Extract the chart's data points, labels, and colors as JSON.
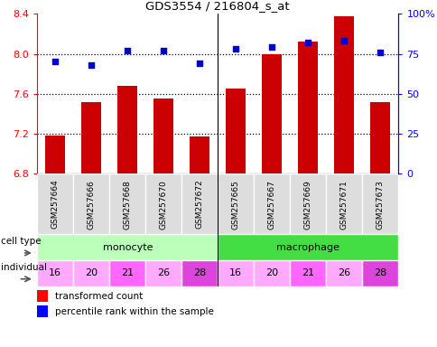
{
  "title": "GDS3554 / 216804_s_at",
  "samples": [
    "GSM257664",
    "GSM257666",
    "GSM257668",
    "GSM257670",
    "GSM257672",
    "GSM257665",
    "GSM257667",
    "GSM257669",
    "GSM257671",
    "GSM257673"
  ],
  "transformed_count": [
    7.18,
    7.52,
    7.68,
    7.55,
    7.17,
    7.65,
    8.0,
    8.12,
    8.38,
    7.52
  ],
  "percentile_rank": [
    70,
    68,
    77,
    77,
    69,
    78,
    79,
    82,
    83,
    76
  ],
  "ylim_left": [
    6.8,
    8.4
  ],
  "ylim_right": [
    0,
    100
  ],
  "yticks_left": [
    6.8,
    7.2,
    7.6,
    8.0,
    8.4
  ],
  "yticks_right": [
    0,
    25,
    50,
    75,
    100
  ],
  "ytick_labels_right": [
    "0",
    "25",
    "50",
    "75",
    "100%"
  ],
  "hlines": [
    7.2,
    7.6,
    8.0
  ],
  "cell_types": [
    {
      "label": "monocyte",
      "start": 0,
      "end": 5,
      "color": "#bbffbb"
    },
    {
      "label": "macrophage",
      "start": 5,
      "end": 10,
      "color": "#44dd44"
    }
  ],
  "individuals": [
    {
      "label": "16",
      "idx": 0
    },
    {
      "label": "20",
      "idx": 1
    },
    {
      "label": "21",
      "idx": 2
    },
    {
      "label": "26",
      "idx": 3
    },
    {
      "label": "28",
      "idx": 4
    },
    {
      "label": "16",
      "idx": 5
    },
    {
      "label": "20",
      "idx": 6
    },
    {
      "label": "21",
      "idx": 7
    },
    {
      "label": "26",
      "idx": 8
    },
    {
      "label": "28",
      "idx": 9
    }
  ],
  "indiv_colors": {
    "16": "#ffaaff",
    "20": "#ffaaff",
    "21": "#ff66ff",
    "26": "#ffaaff",
    "28": "#dd44dd"
  },
  "bar_color": "#cc0000",
  "dot_color": "#0000cc",
  "bar_width": 0.55,
  "legend_items": [
    {
      "color": "#cc0000",
      "label": "transformed count"
    },
    {
      "color": "#0000cc",
      "label": "percentile rank within the sample"
    }
  ],
  "plot_bg": "#ffffff",
  "fig_bg": "#ffffff"
}
